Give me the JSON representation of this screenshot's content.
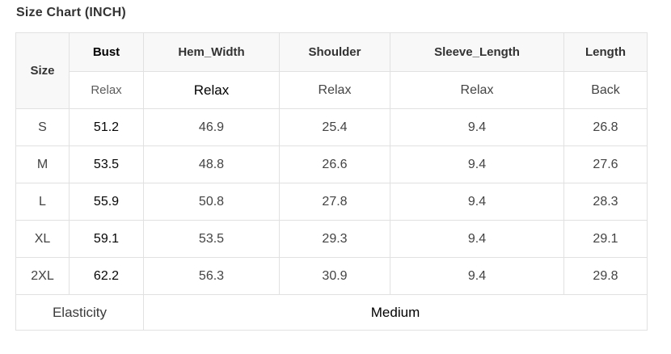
{
  "title": "Size Chart (INCH)",
  "table": {
    "corner_label": "Size",
    "columns": [
      {
        "label": "Bust",
        "sub": "Relax"
      },
      {
        "label": "Hem_Width",
        "sub": "Relax"
      },
      {
        "label": "Shoulder",
        "sub": "Relax"
      },
      {
        "label": "Sleeve_Length",
        "sub": "Relax"
      },
      {
        "label": "Length",
        "sub": "Back"
      }
    ],
    "rows": [
      {
        "size": "S",
        "values": [
          "51.2",
          "46.9",
          "25.4",
          "9.4",
          "26.8"
        ]
      },
      {
        "size": "M",
        "values": [
          "53.5",
          "48.8",
          "26.6",
          "9.4",
          "27.6"
        ]
      },
      {
        "size": "L",
        "values": [
          "55.9",
          "50.8",
          "27.8",
          "9.4",
          "28.3"
        ]
      },
      {
        "size": "XL",
        "values": [
          "59.1",
          "53.5",
          "29.3",
          "9.4",
          "29.1"
        ]
      },
      {
        "size": "2XL",
        "values": [
          "62.2",
          "56.3",
          "30.9",
          "9.4",
          "29.8"
        ]
      }
    ],
    "footer": {
      "label": "Elasticity",
      "value": "Medium"
    }
  },
  "colors": {
    "header_bg": "#f8f8f8",
    "border": "#e1e1e1",
    "text_primary": "#333333",
    "text_values": "#434343",
    "text_dark": "#000000"
  }
}
